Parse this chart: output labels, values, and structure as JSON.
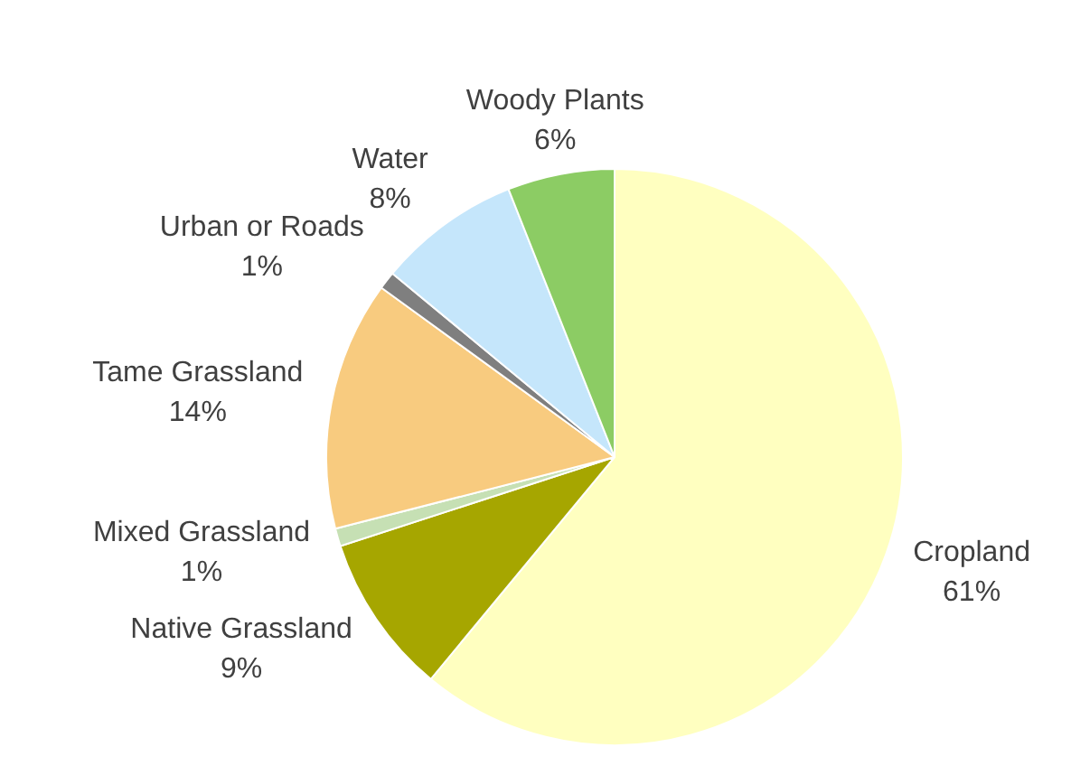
{
  "chart_data": {
    "type": "pie",
    "categories": [
      "Cropland",
      "Native Grassland",
      "Mixed Grassland",
      "Tame Grassland",
      "Urban or Roads",
      "Water",
      "Woody Plants"
    ],
    "values": [
      61,
      9,
      1,
      14,
      1,
      8,
      6
    ],
    "value_labels": [
      "61%",
      "9%",
      "1%",
      "14%",
      "1%",
      "8%",
      "6%"
    ],
    "colors": [
      "#ffffc0",
      "#a6a600",
      "#c6e0b4",
      "#f8cb7f",
      "#7f7f7f",
      "#c5e6fb",
      "#8ccc64"
    ],
    "legend": false
  }
}
